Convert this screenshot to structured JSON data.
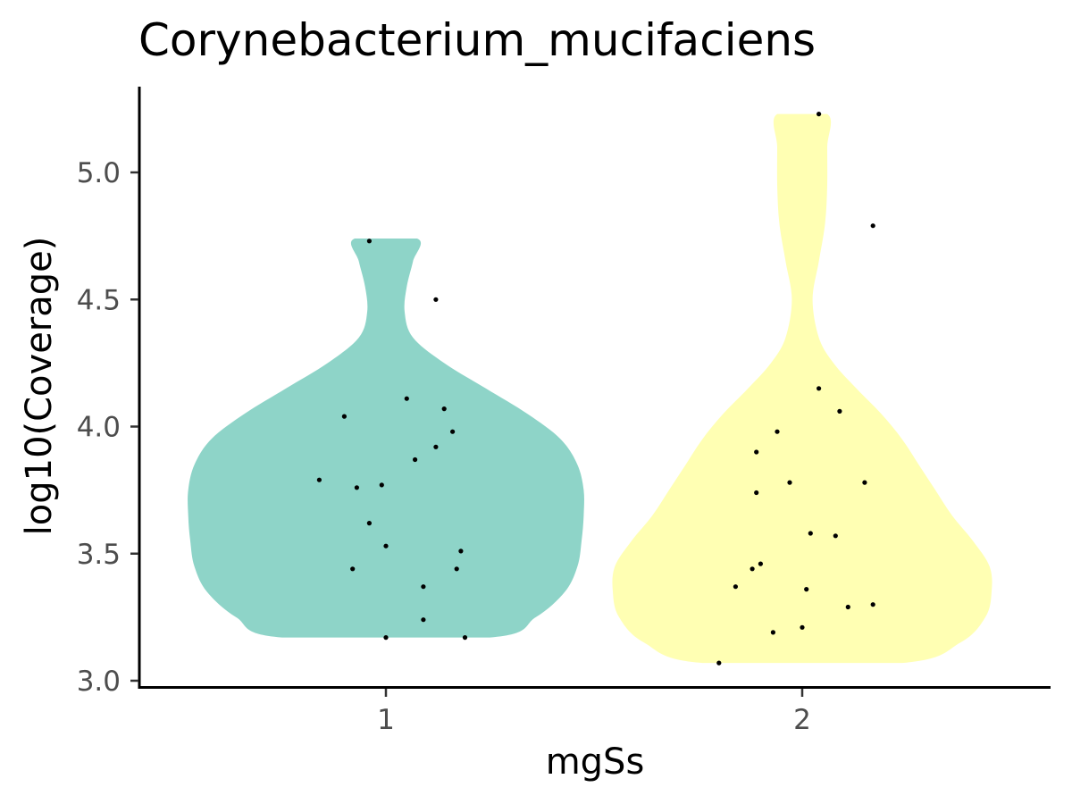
{
  "chart_data": {
    "type": "violin",
    "title": "Corynebacterium_mucifaciens",
    "xlabel": "mgSs",
    "ylabel": "log10(Coverage)",
    "categories": [
      "1",
      "2"
    ],
    "ylim": [
      3.0,
      5.26
    ],
    "yticks": [
      3.0,
      3.5,
      4.0,
      4.5,
      5.0
    ],
    "ytick_labels": [
      "3.0",
      "3.5",
      "4.0",
      "4.5",
      "5.0"
    ],
    "grid": false,
    "legend": "none",
    "series": [
      {
        "category": "1",
        "color": "#8ED4C8",
        "y_range": [
          3.17,
          4.74
        ],
        "density_profile": [
          {
            "y": 3.17,
            "w": 0.25
          },
          {
            "y": 3.25,
            "w": 0.36
          },
          {
            "y": 3.35,
            "w": 0.43
          },
          {
            "y": 3.45,
            "w": 0.46
          },
          {
            "y": 3.55,
            "w": 0.47
          },
          {
            "y": 3.65,
            "w": 0.475
          },
          {
            "y": 3.75,
            "w": 0.475
          },
          {
            "y": 3.85,
            "w": 0.46
          },
          {
            "y": 3.95,
            "w": 0.42
          },
          {
            "y": 4.05,
            "w": 0.34
          },
          {
            "y": 4.15,
            "w": 0.24
          },
          {
            "y": 4.25,
            "w": 0.14
          },
          {
            "y": 4.35,
            "w": 0.065
          },
          {
            "y": 4.45,
            "w": 0.045
          },
          {
            "y": 4.55,
            "w": 0.05
          },
          {
            "y": 4.65,
            "w": 0.065
          },
          {
            "y": 4.74,
            "w": 0.075
          }
        ],
        "points": [
          {
            "x": 0.96,
            "y": 4.73
          },
          {
            "x": 1.12,
            "y": 4.5
          },
          {
            "x": 1.05,
            "y": 4.11
          },
          {
            "x": 0.9,
            "y": 4.04
          },
          {
            "x": 1.14,
            "y": 4.07
          },
          {
            "x": 1.16,
            "y": 3.98
          },
          {
            "x": 1.12,
            "y": 3.92
          },
          {
            "x": 1.07,
            "y": 3.87
          },
          {
            "x": 0.84,
            "y": 3.79
          },
          {
            "x": 0.93,
            "y": 3.76
          },
          {
            "x": 0.99,
            "y": 3.77
          },
          {
            "x": 0.96,
            "y": 3.62
          },
          {
            "x": 1.0,
            "y": 3.53
          },
          {
            "x": 1.18,
            "y": 3.51
          },
          {
            "x": 0.92,
            "y": 3.44
          },
          {
            "x": 1.17,
            "y": 3.44
          },
          {
            "x": 1.09,
            "y": 3.37
          },
          {
            "x": 1.09,
            "y": 3.24
          },
          {
            "x": 1.0,
            "y": 3.17
          },
          {
            "x": 1.19,
            "y": 3.17
          }
        ]
      },
      {
        "category": "2",
        "color": "#FFFFB3",
        "y_range": [
          3.07,
          5.23
        ],
        "density_profile": [
          {
            "y": 3.07,
            "w": 0.24
          },
          {
            "y": 3.15,
            "w": 0.38
          },
          {
            "y": 3.25,
            "w": 0.44
          },
          {
            "y": 3.35,
            "w": 0.455
          },
          {
            "y": 3.45,
            "w": 0.45
          },
          {
            "y": 3.55,
            "w": 0.41
          },
          {
            "y": 3.65,
            "w": 0.36
          },
          {
            "y": 3.75,
            "w": 0.32
          },
          {
            "y": 3.85,
            "w": 0.28
          },
          {
            "y": 3.95,
            "w": 0.24
          },
          {
            "y": 4.05,
            "w": 0.19
          },
          {
            "y": 4.15,
            "w": 0.13
          },
          {
            "y": 4.25,
            "w": 0.075
          },
          {
            "y": 4.35,
            "w": 0.04
          },
          {
            "y": 4.5,
            "w": 0.025
          },
          {
            "y": 4.65,
            "w": 0.04
          },
          {
            "y": 4.8,
            "w": 0.055
          },
          {
            "y": 4.95,
            "w": 0.06
          },
          {
            "y": 5.1,
            "w": 0.06
          },
          {
            "y": 5.23,
            "w": 0.06
          }
        ],
        "points": [
          {
            "x": 2.04,
            "y": 5.23
          },
          {
            "x": 2.17,
            "y": 4.79
          },
          {
            "x": 2.04,
            "y": 4.15
          },
          {
            "x": 2.09,
            "y": 4.06
          },
          {
            "x": 1.94,
            "y": 3.98
          },
          {
            "x": 1.89,
            "y": 3.9
          },
          {
            "x": 1.97,
            "y": 3.78
          },
          {
            "x": 2.15,
            "y": 3.78
          },
          {
            "x": 1.89,
            "y": 3.74
          },
          {
            "x": 2.02,
            "y": 3.58
          },
          {
            "x": 2.08,
            "y": 3.57
          },
          {
            "x": 1.9,
            "y": 3.46
          },
          {
            "x": 1.88,
            "y": 3.44
          },
          {
            "x": 1.84,
            "y": 3.37
          },
          {
            "x": 2.01,
            "y": 3.36
          },
          {
            "x": 2.17,
            "y": 3.3
          },
          {
            "x": 2.11,
            "y": 3.29
          },
          {
            "x": 2.0,
            "y": 3.21
          },
          {
            "x": 1.93,
            "y": 3.19
          },
          {
            "x": 1.8,
            "y": 3.07
          }
        ]
      }
    ]
  }
}
